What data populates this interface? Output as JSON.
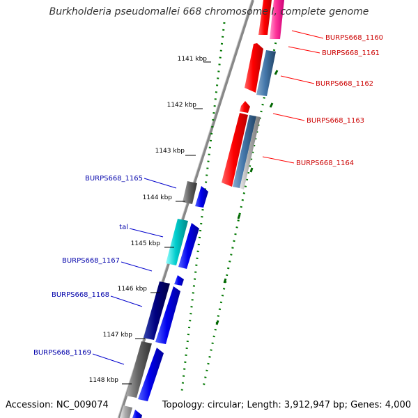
{
  "title": "Burkholderia pseudomallei 668 chromosome I, complete genome",
  "footer": {
    "accession": "Accession: NC_009074",
    "summary": "Topology: circular; Length: 3,912,947 bp; Genes: 4,000"
  },
  "colors": {
    "forward_gene": "#ff0000",
    "forward_gene_alt": "#ff3399",
    "forward_gene_steel": "#4477aa",
    "forward_gene_grey": "#aaaaaa",
    "reverse_gene": "#0000ee",
    "reverse_gene_dark": "#000080",
    "reverse_gene_grey": "#666666",
    "reverse_gene_cyan": "#00cccc",
    "dots": "#007700",
    "backbone": "#888888",
    "label_forward": "#cc0000",
    "label_reverse": "#0000aa"
  },
  "ticks": [
    {
      "label": "1141 kbp"
    },
    {
      "label": "1142 kbp"
    },
    {
      "label": "1143 kbp"
    },
    {
      "label": "1144 kbp"
    },
    {
      "label": "1145 kbp"
    },
    {
      "label": "1146 kbp"
    },
    {
      "label": "1147 kbp"
    },
    {
      "label": "1148 kbp"
    }
  ],
  "gene_labels_forward": [
    {
      "label": "BURPS668_1160"
    },
    {
      "label": "BURPS668_1161"
    },
    {
      "label": "BURPS668_1162"
    },
    {
      "label": "BURPS668_1163"
    },
    {
      "label": "BURPS668_1164"
    }
  ],
  "gene_labels_reverse": [
    {
      "label": "BURPS668_1165"
    },
    {
      "label": "tal"
    },
    {
      "label": "BURPS668_1167"
    },
    {
      "label": "BURPS668_1168"
    },
    {
      "label": "BURPS668_1169"
    }
  ]
}
